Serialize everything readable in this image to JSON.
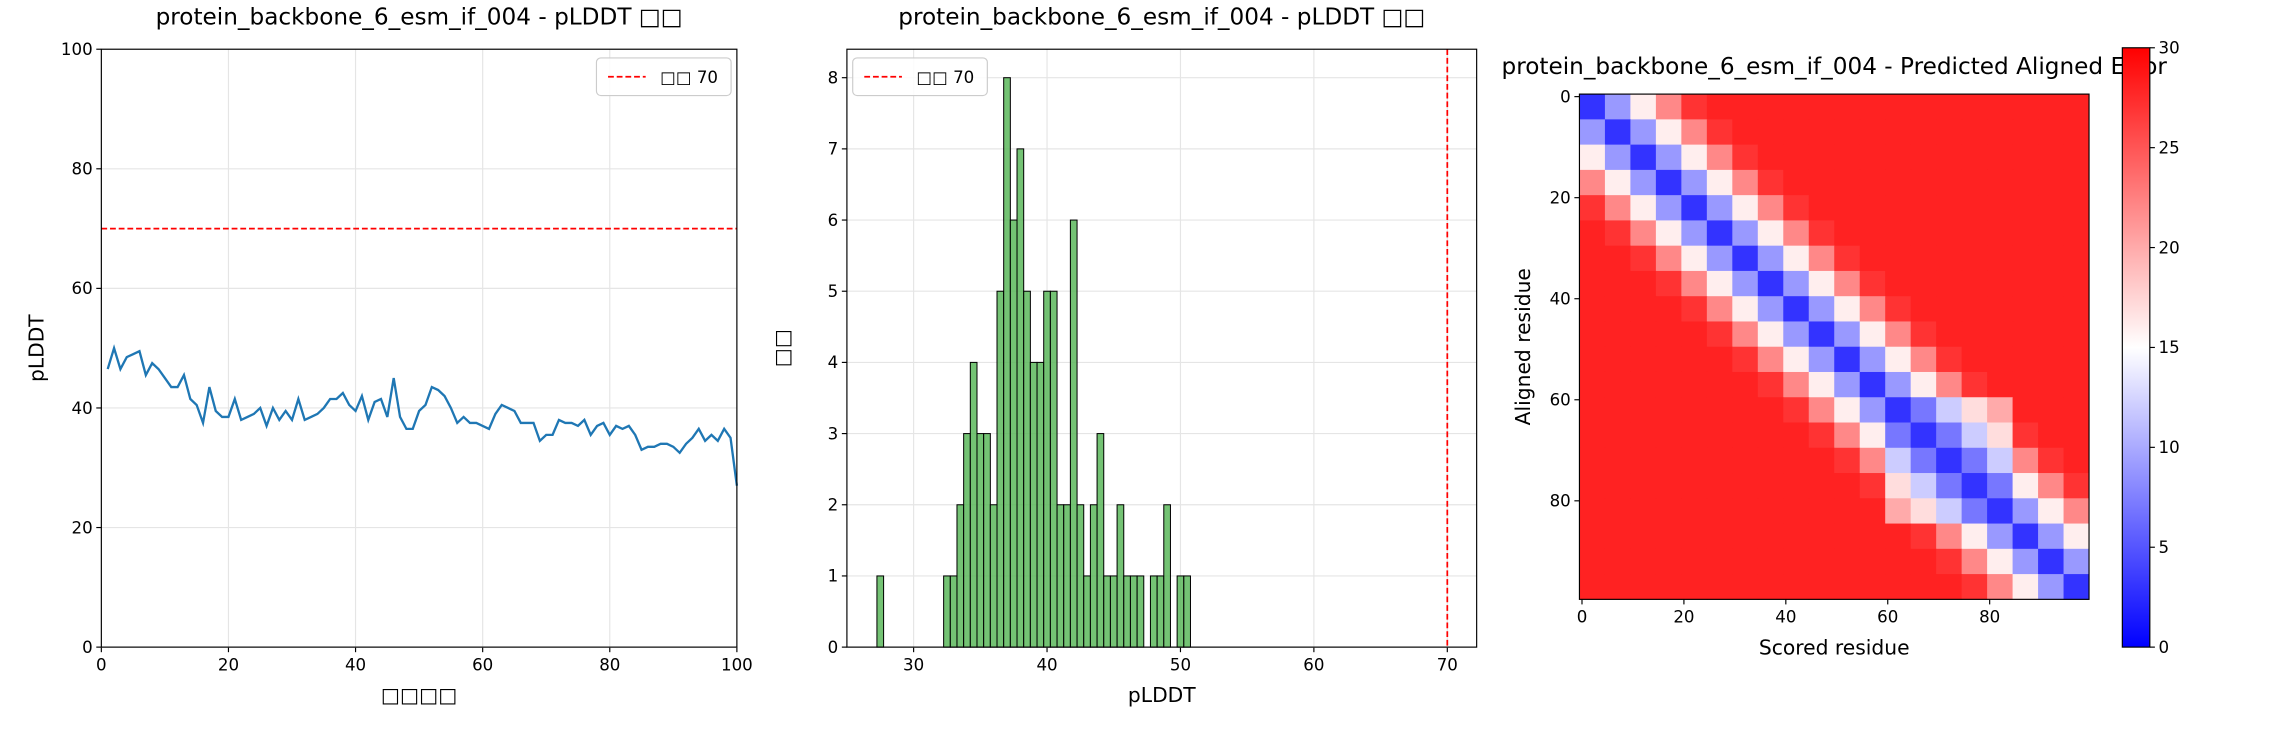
{
  "chart_data": [
    {
      "type": "line",
      "title": "protein_backbone_6_esm_if_004 - pLDDT □□",
      "xlabel": "□□□□",
      "ylabel": "pLDDT",
      "x": [
        1,
        2,
        3,
        4,
        5,
        6,
        7,
        8,
        9,
        10,
        11,
        12,
        13,
        14,
        15,
        16,
        17,
        18,
        19,
        20,
        21,
        22,
        23,
        24,
        25,
        26,
        27,
        28,
        29,
        30,
        31,
        32,
        33,
        34,
        35,
        36,
        37,
        38,
        39,
        40,
        41,
        42,
        43,
        44,
        45,
        46,
        47,
        48,
        49,
        50,
        51,
        52,
        53,
        54,
        55,
        56,
        57,
        58,
        59,
        60,
        61,
        62,
        63,
        64,
        65,
        66,
        67,
        68,
        69,
        70,
        71,
        72,
        73,
        74,
        75,
        76,
        77,
        78,
        79,
        80,
        81,
        82,
        83,
        84,
        85,
        86,
        87,
        88,
        89,
        90,
        91,
        92,
        93,
        94,
        95,
        96,
        97,
        98,
        99,
        100
      ],
      "values": [
        46.5,
        50,
        46.5,
        48.5,
        49,
        49.5,
        45.5,
        47.5,
        46.5,
        45,
        43.5,
        43.5,
        45.5,
        41.5,
        40.5,
        37.5,
        43.5,
        39.5,
        38.5,
        38.5,
        41.5,
        38,
        38.5,
        39,
        40,
        37,
        40,
        38,
        39.5,
        38,
        41.5,
        38,
        38.5,
        39,
        40,
        41.5,
        41.5,
        42.5,
        40.5,
        39.5,
        42,
        38,
        41,
        41.5,
        38.5,
        45,
        38.5,
        36.5,
        36.5,
        39.5,
        40.5,
        43.5,
        43,
        42,
        40,
        37.5,
        38.5,
        37.5,
        37.5,
        37,
        36.5,
        39,
        40.5,
        40,
        39.5,
        37.5,
        37.5,
        37.5,
        34.5,
        35.5,
        35.5,
        38,
        37.5,
        37.5,
        37,
        38,
        35.5,
        37,
        37.5,
        35.5,
        37,
        36.5,
        37,
        35.5,
        33,
        33.5,
        33.5,
        34,
        34,
        33.5,
        32.5,
        34,
        35,
        36.5,
        34.5,
        35.5,
        34.5,
        36.5,
        35,
        27
      ],
      "color": "#1f77b4",
      "hline": {
        "value": 70,
        "label": "□□ 70",
        "color": "#ff0000"
      },
      "xlim": [
        0,
        100
      ],
      "xticks": [
        0,
        20,
        40,
        60,
        80,
        100
      ],
      "ylim": [
        0,
        100
      ],
      "yticks": [
        0,
        20,
        40,
        60,
        80,
        100
      ],
      "grid": true,
      "legend": "upper right"
    },
    {
      "type": "histogram",
      "title": "protein_backbone_6_esm_if_004 - pLDDT □□",
      "xlabel": "pLDDT",
      "ylabel": "□□",
      "bins": [
        27.25,
        27.75,
        28.25,
        28.75,
        29.25,
        29.75,
        30.25,
        30.75,
        31.25,
        31.75,
        32.25,
        32.75,
        33.25,
        33.75,
        34.25,
        34.75,
        35.25,
        35.75,
        36.25,
        36.75,
        37.25,
        37.75,
        38.25,
        38.75,
        39.25,
        39.75,
        40.25,
        40.75,
        41.25,
        41.75,
        42.25,
        42.75,
        43.25,
        43.75,
        44.25,
        44.75,
        45.25,
        45.75,
        46.25,
        46.75,
        47.25,
        47.75,
        48.25,
        48.75,
        49.25,
        49.75,
        50.25,
        50.75
      ],
      "values": [
        1,
        0,
        0,
        0,
        0,
        0,
        0,
        0,
        0,
        0,
        1,
        1,
        2,
        3,
        4,
        3,
        3,
        2,
        5,
        8,
        6,
        7,
        5,
        4,
        4,
        5,
        5,
        2,
        2,
        6,
        2,
        1,
        2,
        3,
        1,
        1,
        2,
        1,
        1,
        1,
        0,
        1,
        1,
        2,
        0,
        1,
        1
      ],
      "color": "#5cb85c",
      "vline": {
        "value": 70,
        "label": "□□ 70",
        "color": "#ff0000"
      },
      "xlim": [
        25,
        72.2
      ],
      "xticks": [
        30,
        40,
        50,
        60,
        70
      ],
      "ylim": [
        0,
        8.4
      ],
      "yticks": [
        0,
        1,
        2,
        3,
        4,
        5,
        6,
        7,
        8
      ],
      "grid": true,
      "legend": "upper left"
    },
    {
      "type": "heatmap",
      "title": "protein_backbone_6_esm_if_004 - Predicted Aligned Error",
      "xlabel": "Scored residue",
      "ylabel": "Aligned residue",
      "x": [
        2,
        7,
        12,
        17,
        22,
        27,
        32,
        37,
        42,
        47,
        52,
        57,
        62,
        67,
        72,
        77,
        82,
        87,
        92,
        97
      ],
      "y": [
        2,
        7,
        12,
        17,
        22,
        27,
        32,
        37,
        42,
        47,
        52,
        57,
        62,
        67,
        72,
        77,
        82,
        87,
        92,
        97
      ],
      "values": [
        [
          3,
          9,
          16,
          22,
          27,
          28,
          28,
          28,
          28,
          28,
          28,
          28,
          28,
          28,
          28,
          28,
          28,
          28,
          28,
          28
        ],
        [
          9,
          3,
          9,
          16,
          22,
          27,
          28,
          28,
          28,
          28,
          28,
          28,
          28,
          28,
          28,
          28,
          28,
          28,
          28,
          28
        ],
        [
          16,
          9,
          3,
          9,
          16,
          22,
          27,
          28,
          28,
          28,
          28,
          28,
          28,
          28,
          28,
          28,
          28,
          28,
          28,
          28
        ],
        [
          22,
          16,
          9,
          3,
          9,
          16,
          22,
          27,
          28,
          28,
          28,
          28,
          28,
          28,
          28,
          28,
          28,
          28,
          28,
          28
        ],
        [
          27,
          22,
          16,
          9,
          3,
          9,
          16,
          22,
          27,
          28,
          28,
          28,
          28,
          28,
          28,
          28,
          28,
          28,
          28,
          28
        ],
        [
          28,
          27,
          22,
          16,
          9,
          3,
          9,
          16,
          22,
          27,
          28,
          28,
          28,
          28,
          28,
          28,
          28,
          28,
          28,
          28
        ],
        [
          28,
          28,
          27,
          22,
          16,
          9,
          3,
          9,
          16,
          22,
          27,
          28,
          28,
          28,
          28,
          28,
          28,
          28,
          28,
          28
        ],
        [
          28,
          28,
          28,
          27,
          22,
          16,
          9,
          3,
          9,
          16,
          22,
          27,
          28,
          28,
          28,
          28,
          28,
          28,
          28,
          28
        ],
        [
          28,
          28,
          28,
          28,
          27,
          22,
          16,
          9,
          3,
          9,
          16,
          22,
          27,
          28,
          28,
          28,
          28,
          28,
          28,
          28
        ],
        [
          28,
          28,
          28,
          28,
          28,
          27,
          22,
          16,
          9,
          3,
          9,
          16,
          22,
          27,
          28,
          28,
          28,
          28,
          28,
          28
        ],
        [
          28,
          28,
          28,
          28,
          28,
          28,
          27,
          22,
          16,
          9,
          3,
          9,
          16,
          22,
          27,
          28,
          28,
          28,
          28,
          28
        ],
        [
          28,
          28,
          28,
          28,
          28,
          28,
          28,
          27,
          22,
          16,
          9,
          3,
          9,
          16,
          22,
          27,
          28,
          28,
          28,
          28
        ],
        [
          28,
          28,
          28,
          28,
          28,
          28,
          28,
          28,
          27,
          22,
          16,
          9,
          3,
          7,
          12,
          17,
          20,
          28,
          28,
          28
        ],
        [
          28,
          28,
          28,
          28,
          28,
          28,
          28,
          28,
          28,
          27,
          22,
          16,
          7,
          3,
          7,
          12,
          17,
          27,
          28,
          28
        ],
        [
          28,
          28,
          28,
          28,
          28,
          28,
          28,
          28,
          28,
          28,
          27,
          22,
          12,
          7,
          3,
          7,
          12,
          22,
          27,
          28
        ],
        [
          28,
          28,
          28,
          28,
          28,
          28,
          28,
          28,
          28,
          28,
          28,
          27,
          17,
          12,
          7,
          3,
          7,
          16,
          22,
          27
        ],
        [
          28,
          28,
          28,
          28,
          28,
          28,
          28,
          28,
          28,
          28,
          28,
          28,
          20,
          17,
          12,
          7,
          3,
          9,
          16,
          22
        ],
        [
          28,
          28,
          28,
          28,
          28,
          28,
          28,
          28,
          28,
          28,
          28,
          28,
          28,
          27,
          22,
          16,
          9,
          3,
          9,
          16
        ],
        [
          28,
          28,
          28,
          28,
          28,
          28,
          28,
          28,
          28,
          28,
          28,
          28,
          28,
          28,
          27,
          22,
          16,
          9,
          3,
          9
        ],
        [
          28,
          28,
          28,
          28,
          28,
          28,
          28,
          28,
          28,
          28,
          28,
          28,
          28,
          28,
          28,
          27,
          22,
          16,
          9,
          3
        ]
      ],
      "xlim": [
        -0.5,
        99.5
      ],
      "xticks": [
        0,
        20,
        40,
        60,
        80
      ],
      "ylim": [
        99.5,
        -0.5
      ],
      "yticks": [
        0,
        20,
        40,
        60,
        80
      ],
      "colormap": "bwr",
      "clim": [
        0,
        30
      ],
      "cticks": [
        0,
        5,
        10,
        15,
        20,
        25,
        30
      ]
    }
  ]
}
